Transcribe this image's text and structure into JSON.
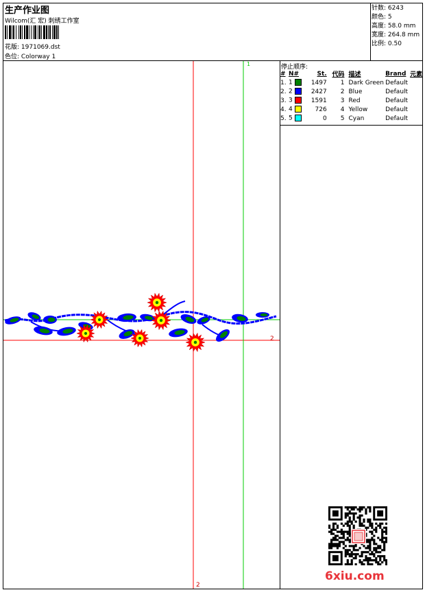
{
  "header": {
    "title": "生产作业图",
    "company": "Wilcom(汇 宏) 刺绣工作室",
    "design_label": "花版:",
    "design_value": "1971069.dst",
    "colorway_label": "色位:",
    "colorway_value": "Colorway 1"
  },
  "stats": {
    "stitches_label": "针数:",
    "stitches": "6243",
    "colors_label": "颜色:",
    "colors": "5",
    "height_label": "高度:",
    "height": "58.0 mm",
    "width_label": "宽度:",
    "width": "264.8 mm",
    "scale_label": "比例:",
    "scale": "0.50"
  },
  "stops": {
    "title": "停止顺序:",
    "headers": [
      "#",
      "N#",
      "St.",
      "代码",
      "描述",
      "Brand",
      "元素"
    ],
    "rows": [
      {
        "idx": "1.",
        "n": "1",
        "color": "#008000",
        "st": "1497",
        "code": "1",
        "desc": "Dark Green",
        "brand": "Default"
      },
      {
        "idx": "2.",
        "n": "2",
        "color": "#0000ff",
        "st": "2427",
        "code": "2",
        "desc": "Blue",
        "brand": "Default"
      },
      {
        "idx": "3.",
        "n": "3",
        "color": "#ff0000",
        "st": "1591",
        "code": "3",
        "desc": "Red",
        "brand": "Default"
      },
      {
        "idx": "4.",
        "n": "4",
        "color": "#ffff00",
        "st": "726",
        "code": "4",
        "desc": "Yellow",
        "brand": "Default"
      },
      {
        "idx": "5.",
        "n": "5",
        "color": "#00ffff",
        "st": "0",
        "code": "5",
        "desc": "Cyan",
        "brand": "Default"
      }
    ]
  },
  "canvas": {
    "marker_green_top": "1",
    "marker_red_right": "2",
    "marker_red_bottom": "2",
    "guide_red": "#ff0000",
    "guide_green": "#00cc00"
  },
  "watermark": {
    "logo": "6xiu.com"
  }
}
